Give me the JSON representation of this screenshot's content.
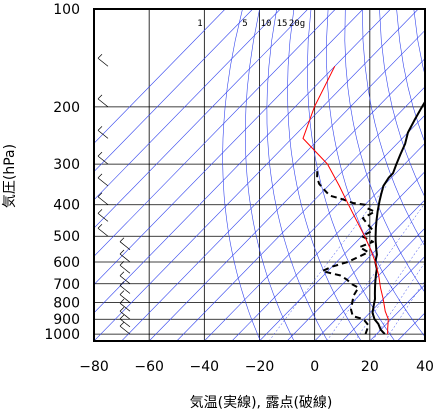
{
  "chart_data": {
    "type": "line",
    "title": "",
    "xlabel": "気温(実線), 露点(破線)",
    "ylabel": "気圧(hPa)",
    "xlim": [
      -80,
      40
    ],
    "ylim": [
      1050,
      100
    ],
    "y_scale": "log",
    "grid": true,
    "x_ticks": [
      -80,
      -60,
      -40,
      -20,
      0,
      20,
      40
    ],
    "y_ticks": [
      100,
      200,
      300,
      400,
      500,
      600,
      700,
      800,
      900,
      1000
    ],
    "mixing_ratio_labels": [
      "1",
      "5",
      "10",
      "15",
      "20g"
    ],
    "series": [
      {
        "style": "solid",
        "color": "#000000",
        "points": [
          [
            23,
            1000
          ],
          [
            20,
            970
          ],
          [
            17,
            930
          ],
          [
            14,
            900
          ],
          [
            11,
            860
          ],
          [
            9,
            820
          ],
          [
            7,
            780
          ],
          [
            5,
            750
          ],
          [
            3,
            720
          ],
          [
            1,
            690
          ],
          [
            -1,
            660
          ],
          [
            -3,
            630
          ],
          [
            -6,
            600
          ],
          [
            -8,
            570
          ],
          [
            -10,
            550
          ],
          [
            -13,
            520
          ],
          [
            -15,
            500
          ],
          [
            -18,
            470
          ],
          [
            -20,
            450
          ],
          [
            -23,
            420
          ],
          [
            -26,
            390
          ],
          [
            -28,
            370
          ],
          [
            -30,
            350
          ],
          [
            -31,
            330
          ],
          [
            -31,
            320
          ],
          [
            -33,
            300
          ],
          [
            -35,
            280
          ],
          [
            -37,
            260
          ],
          [
            -40,
            240
          ],
          [
            -42,
            220
          ],
          [
            -44,
            200
          ],
          [
            -46,
            180
          ],
          [
            -49,
            160
          ],
          [
            -51,
            150
          ],
          [
            -54,
            140
          ],
          [
            -56,
            130
          ],
          [
            -58,
            125
          ],
          [
            -62,
            120
          ],
          [
            -63,
            110
          ],
          [
            -64,
            100
          ]
        ]
      },
      {
        "style": "dashed",
        "color": "#000000",
        "points": [
          [
            16,
            1000
          ],
          [
            15,
            970
          ],
          [
            14,
            940
          ],
          [
            10,
            900
          ],
          [
            5,
            880
          ],
          [
            2,
            840
          ],
          [
            0,
            800
          ],
          [
            -2,
            760
          ],
          [
            -3,
            720
          ],
          [
            -7,
            700
          ],
          [
            -10,
            680
          ],
          [
            -14,
            660
          ],
          [
            -18,
            650
          ],
          [
            -22,
            640
          ],
          [
            -20,
            620
          ],
          [
            -16,
            600
          ],
          [
            -14,
            580
          ],
          [
            -12,
            560
          ],
          [
            -17,
            540
          ],
          [
            -14,
            520
          ],
          [
            -20,
            500
          ],
          [
            -18,
            480
          ],
          [
            -22,
            460
          ],
          [
            -26,
            440
          ],
          [
            -24,
            420
          ],
          [
            -28,
            410
          ],
          [
            -30,
            400
          ],
          [
            -35,
            395
          ],
          [
            -40,
            385
          ],
          [
            -46,
            375
          ],
          [
            -50,
            360
          ],
          [
            -54,
            345
          ],
          [
            -57,
            330
          ],
          [
            -60,
            310
          ]
        ]
      },
      {
        "style": "solid",
        "color": "#ff0000",
        "points": [
          [
            24,
            1000
          ],
          [
            22,
            960
          ],
          [
            19,
            900
          ],
          [
            15,
            850
          ],
          [
            10,
            780
          ],
          [
            5,
            720
          ],
          [
            0,
            660
          ],
          [
            -6,
            600
          ],
          [
            -12,
            550
          ],
          [
            -19,
            500
          ],
          [
            -27,
            450
          ],
          [
            -36,
            400
          ],
          [
            -46,
            350
          ],
          [
            -58,
            300
          ],
          [
            -76,
            250
          ],
          [
            -83,
            200
          ],
          [
            -90,
            150
          ]
        ]
      }
    ]
  }
}
